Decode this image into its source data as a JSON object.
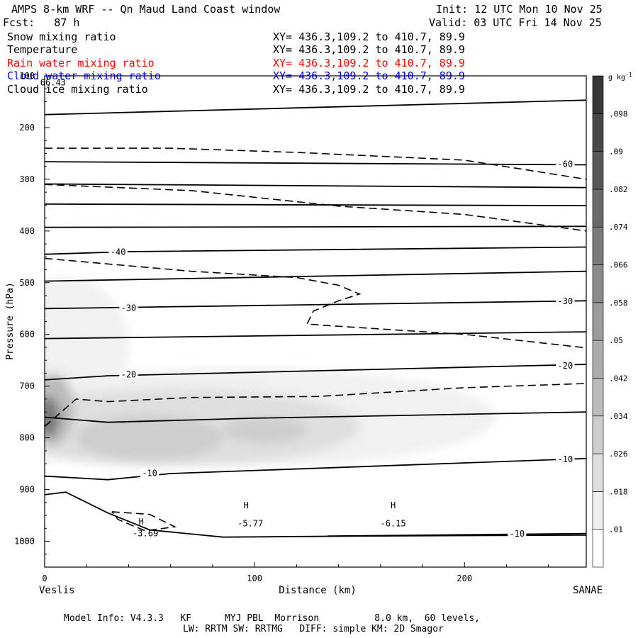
{
  "header": {
    "title": "AMPS 8-km WRF -- Qn Maud Land Coast window",
    "init": "Init: 12 UTC Mon 10 Nov 25",
    "fcst": "Fcst:   87 h",
    "valid": "Valid: 03 UTC Fri 14 Nov 25"
  },
  "fields": [
    {
      "name": "Snow mixing ratio",
      "xy": "XY= 436.3,109.2 to 410.7, 89.9",
      "color": "#000000"
    },
    {
      "name": "Temperature",
      "xy": "XY= 436.3,109.2 to 410.7, 89.9",
      "color": "#000000"
    },
    {
      "name": "Rain water mixing ratio",
      "xy": "XY= 436.3,109.2 to 410.7, 89.9",
      "color": "#ff0000"
    },
    {
      "name": "Cloud water mixing ratio",
      "xy": "XY= 436.3,109.2 to 410.7, 89.9",
      "color": "#0000ff"
    },
    {
      "name": "Cloud ice mixing ratio",
      "xy": "XY= 436.3,109.2 to 410.7, 89.9",
      "color": "#000000"
    }
  ],
  "chart_data": {
    "type": "cross-section",
    "xlabel": "Distance (km)",
    "ylabel": "Pressure (hPa)",
    "xlim": [
      0,
      258
    ],
    "ylim": [
      1050,
      100
    ],
    "x_ticks": [
      0,
      100,
      200
    ],
    "y_ticks": [
      100,
      200,
      300,
      400,
      500,
      600,
      700,
      800,
      900,
      1000
    ],
    "left_end_label": "Veslis",
    "right_end_label": "SANAE",
    "colorbar": {
      "unit": "g kg",
      "unit_exponent": "-1",
      "levels": [
        ".01",
        ".018",
        ".026",
        ".034",
        ".042",
        ".05",
        ".058",
        ".066",
        ".074",
        ".082",
        ".09",
        ".098"
      ]
    },
    "temperature_isotherms": [
      {
        "points": [
          [
            0,
            175
          ],
          [
            258,
            147
          ]
        ]
      },
      {
        "points": [
          [
            0,
            266
          ],
          [
            258,
            272
          ]
        ],
        "label": "-60",
        "at": [
          248,
          270
        ]
      },
      {
        "points": [
          [
            0,
            309
          ],
          [
            258,
            316
          ]
        ]
      },
      {
        "points": [
          [
            0,
            348
          ],
          [
            258,
            351
          ]
        ]
      },
      {
        "points": [
          [
            0,
            393
          ],
          [
            258,
            391
          ]
        ]
      },
      {
        "points": [
          [
            0,
            445
          ],
          [
            40,
            440
          ],
          [
            258,
            431
          ]
        ],
        "label": "-40",
        "at": [
          35,
          440
        ]
      },
      {
        "points": [
          [
            0,
            497
          ],
          [
            258,
            478
          ]
        ]
      },
      {
        "points": [
          [
            0,
            550
          ],
          [
            258,
            535
          ]
        ],
        "label": "-30",
        "at": [
          40,
          548
        ],
        "label2": "-30",
        "at2": [
          248,
          535
        ]
      },
      {
        "points": [
          [
            0,
            608
          ],
          [
            258,
            595
          ]
        ]
      },
      {
        "points": [
          [
            0,
            688
          ],
          [
            30,
            680
          ],
          [
            258,
            658
          ]
        ],
        "label": "-20",
        "at": [
          40,
          677
        ],
        "label2": "-20",
        "at2": [
          248,
          660
        ]
      },
      {
        "points": [
          [
            0,
            760
          ],
          [
            30,
            770
          ],
          [
            100,
            762
          ],
          [
            258,
            750
          ]
        ]
      },
      {
        "points": [
          [
            0,
            874
          ],
          [
            30,
            881
          ],
          [
            60,
            869
          ],
          [
            258,
            840
          ]
        ],
        "label": "-10",
        "at": [
          50,
          868
        ],
        "label2": "-10",
        "at2": [
          248,
          841
        ]
      },
      {
        "points": [
          [
            0,
            910
          ],
          [
            10,
            905
          ],
          [
            30,
            945
          ],
          [
            50,
            978
          ],
          [
            85,
            992
          ],
          [
            150,
            990
          ],
          [
            258,
            988
          ]
        ]
      },
      {
        "points": [
          [
            135,
            990
          ],
          [
            258,
            985
          ]
        ],
        "label": "-10",
        "at": [
          225,
          985
        ]
      }
    ],
    "ice_contours": [
      {
        "points": [
          [
            0,
            240
          ],
          [
            60,
            240
          ],
          [
            120,
            248
          ],
          [
            200,
            263
          ],
          [
            258,
            300
          ]
        ]
      },
      {
        "points": [
          [
            0,
            310
          ],
          [
            70,
            322
          ],
          [
            140,
            352
          ],
          [
            200,
            368
          ],
          [
            258,
            400
          ]
        ]
      },
      {
        "points": [
          [
            0,
            453
          ],
          [
            70,
            478
          ],
          [
            120,
            490
          ],
          [
            140,
            505
          ],
          [
            150,
            522
          ],
          [
            140,
            535
          ],
          [
            128,
            555
          ],
          [
            125,
            580
          ],
          [
            135,
            583
          ],
          [
            200,
            600
          ],
          [
            258,
            626
          ]
        ]
      },
      {
        "points": [
          [
            0,
            778
          ],
          [
            15,
            725
          ],
          [
            30,
            730
          ],
          [
            70,
            722
          ],
          [
            130,
            720
          ],
          [
            200,
            703
          ],
          [
            258,
            695
          ]
        ]
      },
      {
        "points": [
          [
            32,
            943
          ],
          [
            50,
            948
          ],
          [
            62,
            972
          ],
          [
            48,
            980
          ],
          [
            35,
            958
          ],
          [
            32,
            943
          ]
        ]
      }
    ],
    "annotations": [
      {
        "text": "66.43",
        "x": 4,
        "y": 113
      },
      {
        "text": "H",
        "x": 46,
        "y": 962
      },
      {
        "text": "-3.69",
        "x": 48,
        "y": 985
      },
      {
        "text": "H",
        "x": 96,
        "y": 931
      },
      {
        "text": "-5.77",
        "x": 98,
        "y": 966
      },
      {
        "text": "H",
        "x": 166,
        "y": 931
      },
      {
        "text": "-6.15",
        "x": 166,
        "y": 966
      }
    ],
    "snow_shading": [
      {
        "x": 10,
        "p": 620,
        "rx": 30,
        "rp": 130,
        "level": 0.01
      },
      {
        "x": 95,
        "p": 760,
        "rx": 120,
        "rp": 95,
        "level": 0.01
      },
      {
        "x": 60,
        "p": 780,
        "rx": 90,
        "rp": 75,
        "level": 0.018
      },
      {
        "x": 50,
        "p": 800,
        "rx": 35,
        "rp": 45,
        "level": 0.026
      },
      {
        "x": 105,
        "p": 785,
        "rx": 20,
        "rp": 25,
        "level": 0.026
      },
      {
        "x": 4,
        "p": 745,
        "rx": 10,
        "rp": 70,
        "level": 0.034
      },
      {
        "x": 2,
        "p": 760,
        "rx": 5,
        "rp": 40,
        "level": 0.066
      }
    ]
  },
  "footer": {
    "line1": "Model Info: V4.3.3   KF      MYJ PBL  Morrison          8.0 km,  60 levels,",
    "line2": "LW: RRTM SW: RRTMG   DIFF: simple KM: 2D Smagor"
  }
}
